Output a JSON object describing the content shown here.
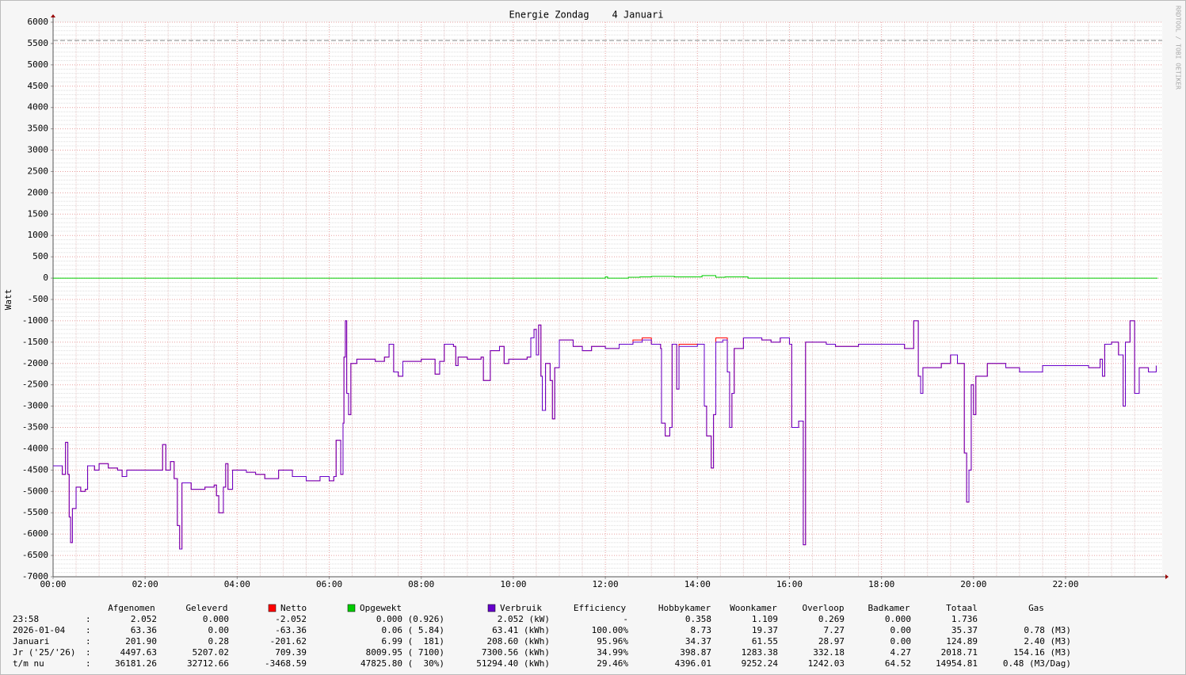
{
  "chart_data": {
    "type": "line",
    "title": "Energie Zondag    4 Januari",
    "ylabel": "Watt",
    "side_text": "RRDTOOL / TOBI OETIKER",
    "xlim": [
      0,
      24.1
    ],
    "xticks": [
      {
        "value": 0,
        "label": "00:00"
      },
      {
        "value": 2,
        "label": "02:00"
      },
      {
        "value": 4,
        "label": "04:00"
      },
      {
        "value": 6,
        "label": "06:00"
      },
      {
        "value": 8,
        "label": "08:00"
      },
      {
        "value": 10,
        "label": "10:00"
      },
      {
        "value": 12,
        "label": "12:00"
      },
      {
        "value": 14,
        "label": "14:00"
      },
      {
        "value": 16,
        "label": "16:00"
      },
      {
        "value": 18,
        "label": "18:00"
      },
      {
        "value": 20,
        "label": "20:00"
      },
      {
        "value": 22,
        "label": "22:00"
      }
    ],
    "ylim": [
      -7000,
      6000
    ],
    "yticks": [
      -7000,
      -6500,
      -6000,
      -5500,
      -5000,
      -4500,
      -4000,
      -3500,
      -3000,
      -2500,
      -2000,
      -1500,
      -1000,
      -500,
      0,
      500,
      1000,
      1500,
      2000,
      2500,
      3000,
      3500,
      4000,
      4500,
      5000,
      5500,
      6000
    ],
    "grid": true,
    "step": true,
    "reference_line": 5570,
    "series": [
      {
        "name": "Netto",
        "color": "#ff0000",
        "x": [
          0,
          0.2,
          0.27,
          0.32,
          0.35,
          0.38,
          0.42,
          0.5,
          0.6,
          0.7,
          0.75,
          0.9,
          1.0,
          1.2,
          1.4,
          1.5,
          1.6,
          2.0,
          2.3,
          2.38,
          2.45,
          2.55,
          2.63,
          2.7,
          2.75,
          2.8,
          3.0,
          3.3,
          3.5,
          3.55,
          3.6,
          3.7,
          3.75,
          3.8,
          3.9,
          4.2,
          4.4,
          4.6,
          4.9,
          5.2,
          5.5,
          5.8,
          6.0,
          6.1,
          6.15,
          6.25,
          6.3,
          6.32,
          6.35,
          6.38,
          6.42,
          6.47,
          6.6,
          7.0,
          7.2,
          7.3,
          7.4,
          7.5,
          7.6,
          8.0,
          8.3,
          8.4,
          8.5,
          8.7,
          8.75,
          8.8,
          9.0,
          9.3,
          9.35,
          9.5,
          9.7,
          9.8,
          9.9,
          10.3,
          10.38,
          10.45,
          10.5,
          10.55,
          10.6,
          10.63,
          10.7,
          10.8,
          10.85,
          10.9,
          11.0,
          11.3,
          11.5,
          11.7,
          12.0,
          12.3,
          12.6,
          12.8,
          13.0,
          13.2,
          13.22,
          13.3,
          13.4,
          13.45,
          13.55,
          13.6,
          14.0,
          14.15,
          14.2,
          14.3,
          14.35,
          14.4,
          14.55,
          14.65,
          14.7,
          14.75,
          14.8,
          15.0,
          15.4,
          15.6,
          15.8,
          16.0,
          16.05,
          16.2,
          16.3,
          16.35,
          16.8,
          17.0,
          17.5,
          18.0,
          18.3,
          18.5,
          18.7,
          18.8,
          18.85,
          18.9,
          19.3,
          19.5,
          19.65,
          19.8,
          19.85,
          19.9,
          19.95,
          20.0,
          20.05,
          20.3,
          20.5,
          20.7,
          21.0,
          21.5,
          22.0,
          22.5,
          22.75,
          22.8,
          22.85,
          23.0,
          23.15,
          23.25,
          23.3,
          23.4,
          23.5,
          23.6,
          23.8,
          23.97
        ],
        "values": [
          -4400,
          -4600,
          -3850,
          -4600,
          -5600,
          -6200,
          -5400,
          -4900,
          -5000,
          -4950,
          -4400,
          -4500,
          -4350,
          -4450,
          -4500,
          -4650,
          -4500,
          -4500,
          -4500,
          -3900,
          -4500,
          -4300,
          -4700,
          -5800,
          -6350,
          -4800,
          -4950,
          -4900,
          -4850,
          -5100,
          -5500,
          -4900,
          -4350,
          -4950,
          -4500,
          -4550,
          -4600,
          -4700,
          -4500,
          -4650,
          -4750,
          -4650,
          -4750,
          -4650,
          -3800,
          -4600,
          -3400,
          -1850,
          -1000,
          -2700,
          -3200,
          -2000,
          -1900,
          -1950,
          -1850,
          -1550,
          -2200,
          -2300,
          -1950,
          -1900,
          -2250,
          -1950,
          -1550,
          -1600,
          -2050,
          -1850,
          -1900,
          -1850,
          -2400,
          -1700,
          -1600,
          -2000,
          -1900,
          -1850,
          -1400,
          -1200,
          -1800,
          -1100,
          -2300,
          -3100,
          -2000,
          -2400,
          -3300,
          -2100,
          -1450,
          -1600,
          -1700,
          -1600,
          -1650,
          -1550,
          -1450,
          -1400,
          -1550,
          -1650,
          -3400,
          -3700,
          -3500,
          -1550,
          -2600,
          -1550,
          -1550,
          -3000,
          -3700,
          -4450,
          -3200,
          -1400,
          -1400,
          -2200,
          -3500,
          -2700,
          -1650,
          -1400,
          -1450,
          -1500,
          -1400,
          -1550,
          -3500,
          -3350,
          -6250,
          -1500,
          -1550,
          -1600,
          -1550,
          -1550,
          -1550,
          -1650,
          -1000,
          -2300,
          -2700,
          -2100,
          -2000,
          -1800,
          -2000,
          -4100,
          -5250,
          -4500,
          -2500,
          -3200,
          -2300,
          -2000,
          -2000,
          -2100,
          -2200,
          -2050,
          -2050,
          -2100,
          -1900,
          -2300,
          -1550,
          -1500,
          -1800,
          -3000,
          -1500,
          -1000,
          -2700,
          -2100,
          -2200,
          -2050
        ]
      },
      {
        "name": "Opgewekt",
        "color": "#00cc00",
        "x": [
          0,
          12.0,
          12.05,
          12.5,
          12.75,
          13.0,
          13.5,
          14.1,
          14.4,
          14.6,
          15.1,
          24.0
        ],
        "values": [
          0,
          30,
          0,
          20,
          30,
          40,
          30,
          60,
          20,
          30,
          0,
          0
        ]
      },
      {
        "name": "Verbruik",
        "color": "#6600cc",
        "x": [
          0,
          0.2,
          0.27,
          0.32,
          0.35,
          0.38,
          0.42,
          0.5,
          0.6,
          0.7,
          0.75,
          0.9,
          1.0,
          1.2,
          1.4,
          1.5,
          1.6,
          2.0,
          2.3,
          2.38,
          2.45,
          2.55,
          2.63,
          2.7,
          2.75,
          2.8,
          3.0,
          3.3,
          3.5,
          3.55,
          3.6,
          3.7,
          3.75,
          3.8,
          3.9,
          4.2,
          4.4,
          4.6,
          4.9,
          5.2,
          5.5,
          5.8,
          6.0,
          6.1,
          6.15,
          6.25,
          6.3,
          6.32,
          6.35,
          6.38,
          6.42,
          6.47,
          6.6,
          7.0,
          7.2,
          7.3,
          7.4,
          7.5,
          7.6,
          8.0,
          8.3,
          8.4,
          8.5,
          8.7,
          8.75,
          8.8,
          9.0,
          9.3,
          9.35,
          9.5,
          9.7,
          9.8,
          9.9,
          10.3,
          10.38,
          10.45,
          10.5,
          10.55,
          10.6,
          10.63,
          10.7,
          10.8,
          10.85,
          10.9,
          11.0,
          11.3,
          11.5,
          11.7,
          12.0,
          12.3,
          12.6,
          12.8,
          13.0,
          13.2,
          13.22,
          13.3,
          13.4,
          13.45,
          13.55,
          13.6,
          14.0,
          14.15,
          14.2,
          14.3,
          14.35,
          14.4,
          14.55,
          14.65,
          14.7,
          14.75,
          14.8,
          15.0,
          15.4,
          15.6,
          15.8,
          16.0,
          16.05,
          16.2,
          16.3,
          16.35,
          16.8,
          17.0,
          17.5,
          18.0,
          18.3,
          18.5,
          18.7,
          18.8,
          18.85,
          18.9,
          19.3,
          19.5,
          19.65,
          19.8,
          19.85,
          19.9,
          19.95,
          20.0,
          20.05,
          20.3,
          20.5,
          20.7,
          21.0,
          21.5,
          22.0,
          22.5,
          22.75,
          22.8,
          22.85,
          23.0,
          23.15,
          23.25,
          23.3,
          23.4,
          23.5,
          23.6,
          23.8,
          23.97
        ],
        "values": [
          -4400,
          -4600,
          -3850,
          -4600,
          -5600,
          -6200,
          -5400,
          -4900,
          -5000,
          -4950,
          -4400,
          -4500,
          -4350,
          -4450,
          -4500,
          -4650,
          -4500,
          -4500,
          -4500,
          -3900,
          -4500,
          -4300,
          -4700,
          -5800,
          -6350,
          -4800,
          -4950,
          -4900,
          -4850,
          -5100,
          -5500,
          -4900,
          -4350,
          -4950,
          -4500,
          -4550,
          -4600,
          -4700,
          -4500,
          -4650,
          -4750,
          -4650,
          -4750,
          -4650,
          -3800,
          -4600,
          -3400,
          -1850,
          -1000,
          -2700,
          -3200,
          -2000,
          -1900,
          -1950,
          -1850,
          -1550,
          -2200,
          -2300,
          -1950,
          -1900,
          -2250,
          -1950,
          -1550,
          -1600,
          -2050,
          -1850,
          -1900,
          -1850,
          -2400,
          -1700,
          -1600,
          -2000,
          -1900,
          -1850,
          -1400,
          -1200,
          -1800,
          -1100,
          -2300,
          -3100,
          -2000,
          -2400,
          -3300,
          -2100,
          -1450,
          -1600,
          -1700,
          -1600,
          -1650,
          -1550,
          -1500,
          -1450,
          -1550,
          -1650,
          -3400,
          -3700,
          -3500,
          -1550,
          -2600,
          -1600,
          -1550,
          -3000,
          -3700,
          -4450,
          -3200,
          -1500,
          -1450,
          -2200,
          -3500,
          -2700,
          -1650,
          -1400,
          -1450,
          -1500,
          -1400,
          -1550,
          -3500,
          -3350,
          -6250,
          -1500,
          -1550,
          -1600,
          -1550,
          -1550,
          -1550,
          -1650,
          -1000,
          -2300,
          -2700,
          -2100,
          -2000,
          -1800,
          -2000,
          -4100,
          -5250,
          -4500,
          -2500,
          -3200,
          -2300,
          -2000,
          -2000,
          -2100,
          -2200,
          -2050,
          -2050,
          -2100,
          -1900,
          -2300,
          -1550,
          -1500,
          -1800,
          -3000,
          -1500,
          -1000,
          -2700,
          -2100,
          -2200,
          -2050
        ]
      }
    ]
  },
  "table": {
    "columns": [
      "Afgenomen",
      "Geleverd",
      "Efficiency",
      "Hobbykamer",
      "Woonkamer",
      "Overloop",
      "Badkamer",
      "Totaal",
      "Gas"
    ],
    "separator": ":",
    "rows": [
      [
        "23:58",
        "2.052",
        "0.000",
        "-2.052",
        "0.000 (0.926)",
        "2.052 (kW)",
        "-",
        "0.358",
        "1.109",
        "0.269",
        "0.000",
        "1.736"
      ],
      [
        "2026-01-04",
        "63.36",
        "0.00",
        "-63.36",
        "0.06 ( 5.84)",
        "63.41 (kWh)",
        "100.00%",
        "8.73",
        "19.37",
        "7.27",
        "0.00",
        "35.37",
        "0.78 (M3)"
      ],
      [
        "Januari",
        "201.90",
        "0.28",
        "-201.62",
        "6.99 (  181)",
        "208.60 (kWh)",
        "95.96%",
        "34.37",
        "61.55",
        "28.97",
        "0.00",
        "124.89",
        "2.40 (M3)"
      ],
      [
        "Jr ('25/'26)",
        "4497.63",
        "5207.02",
        "709.39",
        "8009.95 ( 7100)",
        "7300.56 (kWh)",
        "34.99%",
        "398.87",
        "1283.38",
        "332.18",
        "4.27",
        "2018.71",
        "154.16 (M3)"
      ],
      [
        "t/m nu",
        "36181.26",
        "32712.66",
        "-3468.59",
        "47825.80 (  30%)",
        "51294.40 (kWh)",
        "29.46%",
        "4396.01",
        "9252.24",
        "1242.03",
        "64.52",
        "14954.81",
        "0.48 (M3/Dag)"
      ]
    ]
  }
}
